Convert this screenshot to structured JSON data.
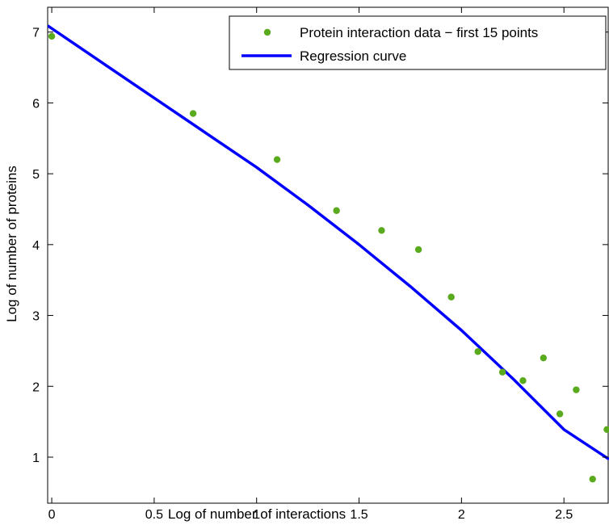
{
  "chart_data": {
    "type": "scatter",
    "title": "",
    "xlabel": "Log of number of interactions",
    "ylabel": "Log of number of proteins",
    "xlim": [
      -0.02,
      2.72
    ],
    "ylim": [
      0.35,
      7.35
    ],
    "x_ticks": [
      0,
      0.5,
      1,
      1.5,
      2,
      2.5
    ],
    "x_tick_labels": [
      "0",
      "0.5",
      "1",
      "1.5",
      "2",
      "2.5"
    ],
    "y_ticks": [
      1,
      2,
      3,
      4,
      5,
      6,
      7
    ],
    "y_tick_labels": [
      "1",
      "2",
      "3",
      "4",
      "5",
      "6",
      "7"
    ],
    "grid": false,
    "legend_position": "top-right",
    "series": [
      {
        "name": "Protein interaction data − first 15 points",
        "kind": "scatter",
        "color": "#5aaa1e",
        "points": [
          [
            0.0,
            6.94
          ],
          [
            0.69,
            5.85
          ],
          [
            1.1,
            5.2
          ],
          [
            1.39,
            4.48
          ],
          [
            1.61,
            4.2
          ],
          [
            1.79,
            3.93
          ],
          [
            1.95,
            3.26
          ],
          [
            2.08,
            2.49
          ],
          [
            2.2,
            2.2
          ],
          [
            2.3,
            2.08
          ],
          [
            2.4,
            2.4
          ],
          [
            2.48,
            1.61
          ],
          [
            2.56,
            1.95
          ],
          [
            2.64,
            0.69
          ],
          [
            2.71,
            1.39
          ]
        ]
      },
      {
        "name": "Regression curve",
        "kind": "line",
        "color": "#0000ff",
        "points": [
          [
            -0.02,
            7.09
          ],
          [
            0.25,
            6.56
          ],
          [
            0.5,
            6.07
          ],
          [
            0.75,
            5.58
          ],
          [
            1.0,
            5.09
          ],
          [
            1.25,
            4.56
          ],
          [
            1.5,
            4.0
          ],
          [
            1.75,
            3.41
          ],
          [
            2.0,
            2.79
          ],
          [
            2.25,
            2.11
          ],
          [
            2.5,
            1.39
          ],
          [
            2.72,
            0.97
          ]
        ]
      }
    ]
  }
}
